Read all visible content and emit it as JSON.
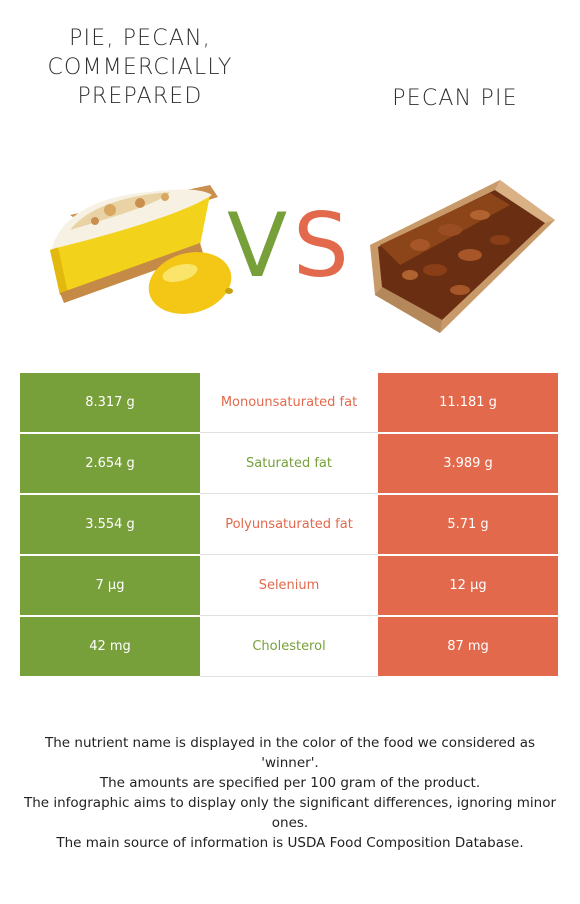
{
  "colors": {
    "left_food": "#77a03a",
    "right_food": "#e3694c",
    "vs_v": "#77a03a",
    "vs_s": "#e3694c"
  },
  "foods": {
    "left": {
      "name": "Pie, pecan, commercially prepared",
      "image_icon": "lemon-meringue-pie-with-lemon-image"
    },
    "right": {
      "name": "Pecan pie",
      "image_icon": "pecan-pie-slice-image"
    }
  },
  "vs": {
    "v": "V",
    "s": "S"
  },
  "nutrients": [
    {
      "name": "Monounsaturated fat",
      "left": "8.317 g",
      "right": "11.181 g",
      "winner": "right"
    },
    {
      "name": "Saturated fat",
      "left": "2.654 g",
      "right": "3.989 g",
      "winner": "left"
    },
    {
      "name": "Polyunsaturated fat",
      "left": "3.554 g",
      "right": "5.71 g",
      "winner": "right"
    },
    {
      "name": "Selenium",
      "left": "7 µg",
      "right": "12 µg",
      "winner": "right"
    },
    {
      "name": "Cholesterol",
      "left": "42 mg",
      "right": "87 mg",
      "winner": "left"
    }
  ],
  "footer": {
    "line1": "The nutrient name is displayed in the color of the food we considered as 'winner'.",
    "line2": "The amounts are specified per 100 gram of the product.",
    "line3": "The infographic aims to display only the significant differences, ignoring minor ones.",
    "line4": "The main source of information is USDA Food Composition Database."
  }
}
